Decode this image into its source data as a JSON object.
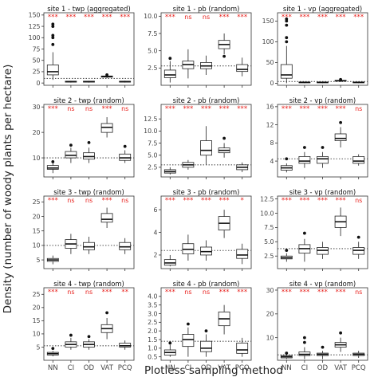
{
  "figure": {
    "ylabel": "Density (number of woody plants per hectare)",
    "xlabel": "Plotless sampling method"
  },
  "chart_data": {
    "type": "box",
    "categories": [
      "NN",
      "CI",
      "OD",
      "VAT",
      "PCQ"
    ],
    "significance_color": "#e8211d",
    "reference_line_style": "dotted",
    "panels": [
      {
        "title": "site 1 - twp (aggregated)",
        "ylim": [
          -5,
          155
        ],
        "yticks": [
          0,
          25,
          50,
          75,
          100,
          125,
          150
        ],
        "reference": 10,
        "signif": [
          "***",
          "***",
          "***",
          "***",
          "***"
        ],
        "boxes": [
          {
            "low": 7,
            "q1": 18,
            "median": 25,
            "q3": 40,
            "high": 68,
            "outliers": [
              85,
              100,
              105,
              125,
              130
            ]
          },
          {
            "low": 1,
            "q1": 2,
            "median": 3,
            "q3": 4,
            "high": 5,
            "outliers": []
          },
          {
            "low": 1,
            "q1": 2,
            "median": 3,
            "q3": 4,
            "high": 5,
            "outliers": []
          },
          {
            "low": 11,
            "q1": 13,
            "median": 14,
            "q3": 15.5,
            "high": 17,
            "outliers": [
              18
            ]
          },
          {
            "low": 1,
            "q1": 2,
            "median": 3,
            "q3": 4,
            "high": 5,
            "outliers": []
          }
        ]
      },
      {
        "title": "site 1 - pb (random)",
        "ylim": [
          0,
          10.5
        ],
        "yticks": [
          2.5,
          5.0,
          7.5,
          10.0
        ],
        "reference": 2.8,
        "signif": [
          "***",
          "ns",
          "ns",
          "***",
          "***"
        ],
        "boxes": [
          {
            "low": 0.4,
            "q1": 1.1,
            "median": 1.5,
            "q3": 2.2,
            "high": 3.5,
            "outliers": [
              3.9
            ]
          },
          {
            "low": 1,
            "q1": 2.4,
            "median": 3.0,
            "q3": 3.5,
            "high": 5.2,
            "outliers": []
          },
          {
            "low": 1.5,
            "q1": 2.4,
            "median": 2.8,
            "q3": 3.3,
            "high": 4.3,
            "outliers": []
          },
          {
            "low": 4.5,
            "q1": 5.3,
            "median": 5.9,
            "q3": 6.5,
            "high": 7.5,
            "outliers": [
              4.2
            ]
          },
          {
            "low": 1.3,
            "q1": 2.0,
            "median": 2.3,
            "q3": 3.0,
            "high": 4.0,
            "outliers": []
          }
        ]
      },
      {
        "title": "site 1 - vp (aggregated)",
        "ylim": [
          -5,
          170
        ],
        "yticks": [
          0,
          50,
          100,
          150
        ],
        "reference": 4,
        "signif": [
          "***",
          "***",
          "***",
          "***",
          "***"
        ],
        "boxes": [
          {
            "low": 0,
            "q1": 12,
            "median": 20,
            "q3": 45,
            "high": 90,
            "outliers": [
              100,
              110,
              140,
              150,
              155
            ]
          },
          {
            "low": 0,
            "q1": 1,
            "median": 2,
            "q3": 3,
            "high": 4,
            "outliers": []
          },
          {
            "low": 0,
            "q1": 1,
            "median": 2,
            "q3": 3,
            "high": 4,
            "outliers": []
          },
          {
            "low": 3,
            "q1": 5,
            "median": 6,
            "q3": 7,
            "high": 8,
            "outliers": [
              9
            ]
          },
          {
            "low": 0,
            "q1": 1,
            "median": 2,
            "q3": 3,
            "high": 4,
            "outliers": []
          }
        ]
      },
      {
        "title": "site 2 - twp (random)",
        "ylim": [
          2.5,
          31
        ],
        "yticks": [
          10,
          20,
          30
        ],
        "reference": 10,
        "signif": [
          "***",
          "ns",
          "ns",
          "***",
          "ns"
        ],
        "boxes": [
          {
            "low": 4,
            "q1": 5.5,
            "median": 6,
            "q3": 7,
            "high": 8,
            "outliers": [
              8.5
            ]
          },
          {
            "low": 8,
            "q1": 10,
            "median": 11,
            "q3": 12.5,
            "high": 14,
            "outliers": [
              15
            ]
          },
          {
            "low": 8,
            "q1": 9.5,
            "median": 10.5,
            "q3": 12,
            "high": 14,
            "outliers": [
              16
            ]
          },
          {
            "low": 18,
            "q1": 20,
            "median": 22,
            "q3": 23.5,
            "high": 26,
            "outliers": []
          },
          {
            "low": 8,
            "q1": 9,
            "median": 10,
            "q3": 11.5,
            "high": 13,
            "outliers": [
              14.5
            ]
          }
        ]
      },
      {
        "title": "site 2 - pb (random)",
        "ylim": [
          0.5,
          15.5
        ],
        "yticks": [
          2.5,
          5.0,
          7.5,
          10.0,
          12.5
        ],
        "reference": 3,
        "signif": [
          "***",
          "***",
          "***",
          "***",
          "***"
        ],
        "boxes": [
          {
            "low": 1,
            "q1": 1.3,
            "median": 1.6,
            "q3": 2,
            "high": 2.5,
            "outliers": []
          },
          {
            "low": 2,
            "q1": 2.5,
            "median": 3,
            "q3": 3.5,
            "high": 4,
            "outliers": []
          },
          {
            "low": 3,
            "q1": 5,
            "median": 6,
            "q3": 8,
            "high": 11,
            "outliers": []
          },
          {
            "low": 4.5,
            "q1": 5.5,
            "median": 6,
            "q3": 6.5,
            "high": 7.5,
            "outliers": [
              8.5
            ]
          },
          {
            "low": 1.5,
            "q1": 2,
            "median": 2.5,
            "q3": 3,
            "high": 3.5,
            "outliers": []
          }
        ]
      },
      {
        "title": "site 2 - vp (random)",
        "ylim": [
          0.5,
          16.5
        ],
        "yticks": [
          4.0,
          8.0,
          12.0,
          16.0
        ],
        "reference": 4.5,
        "signif": [
          "***",
          "***",
          "***",
          "***",
          "ns"
        ],
        "boxes": [
          {
            "low": 1.5,
            "q1": 2,
            "median": 2.5,
            "q3": 3,
            "high": 3.5,
            "outliers": [
              4.5
            ]
          },
          {
            "low": 2.5,
            "q1": 3.5,
            "median": 4,
            "q3": 5,
            "high": 6,
            "outliers": [
              7
            ]
          },
          {
            "low": 2.5,
            "q1": 3.5,
            "median": 4.5,
            "q3": 5,
            "high": 6,
            "outliers": [
              7
            ]
          },
          {
            "low": 7,
            "q1": 8.5,
            "median": 9,
            "q3": 10,
            "high": 11.5,
            "outliers": [
              12.5
            ]
          },
          {
            "low": 3,
            "q1": 3.5,
            "median": 4,
            "q3": 5,
            "high": 5.5,
            "outliers": []
          }
        ]
      },
      {
        "title": "site 3 - twp (random)",
        "ylim": [
          2,
          27
        ],
        "yticks": [
          5.0,
          10.0,
          15.0,
          20.0,
          25.0
        ],
        "reference": 10,
        "signif": [
          "***",
          "ns",
          "ns",
          "***",
          "ns"
        ],
        "boxes": [
          {
            "low": 3.5,
            "q1": 4.5,
            "median": 5,
            "q3": 5.5,
            "high": 6.5,
            "outliers": []
          },
          {
            "low": 7,
            "q1": 9,
            "median": 10.5,
            "q3": 12,
            "high": 14,
            "outliers": []
          },
          {
            "low": 7,
            "q1": 8.5,
            "median": 9.5,
            "q3": 11,
            "high": 13,
            "outliers": []
          },
          {
            "low": 16,
            "q1": 18,
            "median": 19,
            "q3": 21,
            "high": 23,
            "outliers": []
          },
          {
            "low": 7,
            "q1": 8.5,
            "median": 9.5,
            "q3": 11,
            "high": 12.5,
            "outliers": []
          }
        ]
      },
      {
        "title": "site 3 - pb (random)",
        "ylim": [
          0.8,
          7.2
        ],
        "yticks": [
          2,
          4,
          6
        ],
        "reference": 2.4,
        "signif": [
          "***",
          "***",
          "***",
          "***",
          "*"
        ],
        "boxes": [
          {
            "low": 1,
            "q1": 1.1,
            "median": 1.3,
            "q3": 1.6,
            "high": 2,
            "outliers": []
          },
          {
            "low": 1.5,
            "q1": 2.1,
            "median": 2.5,
            "q3": 3,
            "high": 3.8,
            "outliers": []
          },
          {
            "low": 1.5,
            "q1": 2,
            "median": 2.3,
            "q3": 2.7,
            "high": 3.3,
            "outliers": []
          },
          {
            "low": 3.5,
            "q1": 4.2,
            "median": 4.8,
            "q3": 5.4,
            "high": 6,
            "outliers": []
          },
          {
            "low": 1.2,
            "q1": 1.7,
            "median": 2,
            "q3": 2.5,
            "high": 3,
            "outliers": []
          }
        ]
      },
      {
        "title": "site 3 - vp (random)",
        "ylim": [
          0.3,
          13
        ],
        "yticks": [
          2.5,
          5.0,
          7.5,
          10.0,
          12.5
        ],
        "reference": 3.8,
        "signif": [
          "***",
          "***",
          "***",
          "***",
          "ns"
        ],
        "boxes": [
          {
            "low": 1.5,
            "q1": 2,
            "median": 2.2,
            "q3": 2.5,
            "high": 3,
            "outliers": [
              3.5
            ]
          },
          {
            "low": 1.5,
            "q1": 3,
            "median": 3.8,
            "q3": 4.5,
            "high": 5.5,
            "outliers": [
              6.5
            ]
          },
          {
            "low": 2,
            "q1": 2.8,
            "median": 3.5,
            "q3": 4,
            "high": 5,
            "outliers": []
          },
          {
            "low": 6,
            "q1": 7.5,
            "median": 8.5,
            "q3": 9.5,
            "high": 11,
            "outliers": []
          },
          {
            "low": 2,
            "q1": 2.8,
            "median": 3.5,
            "q3": 4,
            "high": 5,
            "outliers": [
              5.8
            ]
          }
        ]
      },
      {
        "title": "site 4 - twp (random)",
        "ylim": [
          0,
          27.5
        ],
        "yticks": [
          5.0,
          10.0,
          15.0,
          20.0,
          25.0
        ],
        "reference": 5.5,
        "signif": [
          "***",
          "ns",
          "ns",
          "***",
          "**"
        ],
        "boxes": [
          {
            "low": 1.5,
            "q1": 2,
            "median": 2.5,
            "q3": 3,
            "high": 3.5,
            "outliers": [
              4.5
            ]
          },
          {
            "low": 4,
            "q1": 5,
            "median": 6,
            "q3": 7,
            "high": 8.5,
            "outliers": [
              9.5
            ]
          },
          {
            "low": 4,
            "q1": 5,
            "median": 6,
            "q3": 7,
            "high": 8,
            "outliers": [
              9
            ]
          },
          {
            "low": 8,
            "q1": 10.5,
            "median": 12,
            "q3": 13.5,
            "high": 16,
            "outliers": [
              18
            ]
          },
          {
            "low": 4,
            "q1": 5,
            "median": 5.5,
            "q3": 6.5,
            "high": 7.5,
            "outliers": []
          }
        ]
      },
      {
        "title": "site 4 - pb (random)",
        "ylim": [
          0.3,
          4.5
        ],
        "yticks": [
          0.5,
          1.0,
          1.5,
          2.0,
          2.5,
          3.0,
          3.5,
          4.0
        ],
        "reference": 1.4,
        "signif": [
          "***",
          "ns",
          "ns",
          "***",
          "***"
        ],
        "boxes": [
          {
            "low": 0.5,
            "q1": 0.6,
            "median": 0.75,
            "q3": 0.9,
            "high": 1.2,
            "outliers": [
              1.3
            ]
          },
          {
            "low": 0.5,
            "q1": 1.1,
            "median": 1.5,
            "q3": 1.8,
            "high": 2.2,
            "outliers": [
              2.4
            ]
          },
          {
            "low": 0.5,
            "q1": 0.8,
            "median": 1,
            "q3": 1.4,
            "high": 1.8,
            "outliers": [
              2
            ]
          },
          {
            "low": 1.8,
            "q1": 2.3,
            "median": 2.7,
            "q3": 3.1,
            "high": 3.5,
            "outliers": []
          },
          {
            "low": 0.5,
            "q1": 0.7,
            "median": 0.9,
            "q3": 1.3,
            "high": 1.6,
            "outliers": []
          }
        ]
      },
      {
        "title": "site 4 - vp (random)",
        "ylim": [
          0.5,
          31
        ],
        "yticks": [
          10,
          20,
          30
        ],
        "reference": 2.8,
        "signif": [
          "***",
          "***",
          "***",
          "***",
          "ns"
        ],
        "boxes": [
          {
            "low": 1,
            "q1": 1.5,
            "median": 2,
            "q3": 2.5,
            "high": 3,
            "outliers": [
              3.5
            ]
          },
          {
            "low": 1,
            "q1": 2.5,
            "median": 3,
            "q3": 4,
            "high": 6,
            "outliers": [
              8,
              10
            ]
          },
          {
            "low": 1,
            "q1": 2.5,
            "median": 3,
            "q3": 3.5,
            "high": 4.5,
            "outliers": [
              6
            ]
          },
          {
            "low": 4,
            "q1": 6,
            "median": 7,
            "q3": 8,
            "high": 10,
            "outliers": [
              12
            ]
          },
          {
            "low": 1.5,
            "q1": 2.5,
            "median": 3,
            "q3": 3.5,
            "high": 4.5,
            "outliers": []
          }
        ]
      }
    ]
  }
}
